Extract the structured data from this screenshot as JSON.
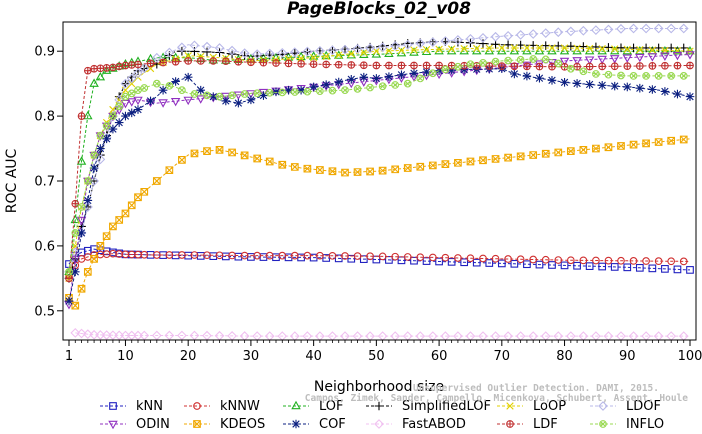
{
  "chart_data": {
    "type": "line",
    "title": "PageBlocks_02_v08",
    "xlabel": "Neighborhood size",
    "ylabel": "ROC AUC",
    "xlim": [
      1,
      100
    ],
    "ylim": [
      0.455,
      0.945
    ],
    "xticks": [
      1,
      10,
      20,
      30,
      40,
      50,
      60,
      70,
      80,
      90,
      100
    ],
    "yticks": [
      0.5,
      0.6,
      0.7,
      0.8,
      0.9
    ],
    "grid": false,
    "legend_position": "bottom",
    "watermark": [
      "Unsupervised Outlier Detection. DAMI, 2015.",
      "Campos, Zimek, Sander, Campello, Micenkova, Schubert, Assent, Houle"
    ],
    "series": [
      {
        "name": "kNN",
        "color": "#2020c0",
        "marker": "square",
        "line": "dash",
        "points": [
          [
            1,
            0.572
          ],
          [
            2,
            0.585
          ],
          [
            3,
            0.59
          ],
          [
            5,
            0.595
          ],
          [
            8,
            0.59
          ],
          [
            10,
            0.587
          ],
          [
            15,
            0.586
          ],
          [
            20,
            0.585
          ],
          [
            30,
            0.583
          ],
          [
            40,
            0.582
          ],
          [
            50,
            0.579
          ],
          [
            60,
            0.576
          ],
          [
            70,
            0.573
          ],
          [
            80,
            0.57
          ],
          [
            90,
            0.567
          ],
          [
            100,
            0.563
          ]
        ]
      },
      {
        "name": "kNNW",
        "color": "#d03030",
        "marker": "circle",
        "line": "dash",
        "points": [
          [
            1,
            0.555
          ],
          [
            2,
            0.57
          ],
          [
            3,
            0.58
          ],
          [
            5,
            0.586
          ],
          [
            8,
            0.588
          ],
          [
            10,
            0.587
          ],
          [
            15,
            0.586
          ],
          [
            20,
            0.586
          ],
          [
            30,
            0.585
          ],
          [
            40,
            0.585
          ],
          [
            50,
            0.584
          ],
          [
            60,
            0.582
          ],
          [
            70,
            0.58
          ],
          [
            80,
            0.578
          ],
          [
            90,
            0.577
          ],
          [
            100,
            0.576
          ]
        ]
      },
      {
        "name": "LOF",
        "color": "#20b020",
        "marker": "triangle-up",
        "line": "dash",
        "points": [
          [
            1,
            0.56
          ],
          [
            2,
            0.64
          ],
          [
            3,
            0.73
          ],
          [
            4,
            0.8
          ],
          [
            5,
            0.85
          ],
          [
            7,
            0.87
          ],
          [
            10,
            0.88
          ],
          [
            15,
            0.89
          ],
          [
            20,
            0.89
          ],
          [
            25,
            0.885
          ],
          [
            30,
            0.888
          ],
          [
            40,
            0.892
          ],
          [
            50,
            0.895
          ],
          [
            60,
            0.9
          ],
          [
            70,
            0.9
          ],
          [
            80,
            0.9
          ],
          [
            90,
            0.9
          ],
          [
            100,
            0.9
          ]
        ]
      },
      {
        "name": "SimplifiedLOF",
        "color": "#000000",
        "marker": "plus",
        "line": "dash",
        "points": [
          [
            1,
            0.55
          ],
          [
            2,
            0.58
          ],
          [
            3,
            0.63
          ],
          [
            4,
            0.66
          ],
          [
            5,
            0.7
          ],
          [
            6,
            0.74
          ],
          [
            7,
            0.77
          ],
          [
            8,
            0.8
          ],
          [
            9,
            0.83
          ],
          [
            10,
            0.85
          ],
          [
            12,
            0.87
          ],
          [
            15,
            0.88
          ],
          [
            18,
            0.9
          ],
          [
            20,
            0.9
          ],
          [
            25,
            0.898
          ],
          [
            30,
            0.892
          ],
          [
            35,
            0.895
          ],
          [
            40,
            0.9
          ],
          [
            45,
            0.903
          ],
          [
            50,
            0.907
          ],
          [
            55,
            0.912
          ],
          [
            60,
            0.915
          ],
          [
            65,
            0.913
          ],
          [
            70,
            0.91
          ],
          [
            80,
            0.908
          ],
          [
            90,
            0.905
          ],
          [
            100,
            0.905
          ]
        ]
      },
      {
        "name": "LoOP",
        "color": "#e0d000",
        "marker": "cross",
        "line": "dash",
        "points": [
          [
            1,
            0.55
          ],
          [
            2,
            0.6
          ],
          [
            3,
            0.66
          ],
          [
            4,
            0.7
          ],
          [
            5,
            0.74
          ],
          [
            6,
            0.77
          ],
          [
            8,
            0.81
          ],
          [
            10,
            0.84
          ],
          [
            12,
            0.86
          ],
          [
            15,
            0.88
          ],
          [
            20,
            0.893
          ],
          [
            25,
            0.89
          ],
          [
            30,
            0.885
          ],
          [
            40,
            0.89
          ],
          [
            50,
            0.9
          ],
          [
            60,
            0.903
          ],
          [
            70,
            0.905
          ],
          [
            80,
            0.905
          ],
          [
            90,
            0.903
          ],
          [
            100,
            0.9
          ]
        ]
      },
      {
        "name": "LDOF",
        "color": "#b8b8e8",
        "marker": "diamond",
        "line": "dash",
        "points": [
          [
            1,
            0.56
          ],
          [
            3,
            0.62
          ],
          [
            5,
            0.7
          ],
          [
            8,
            0.8
          ],
          [
            10,
            0.85
          ],
          [
            15,
            0.89
          ],
          [
            20,
            0.91
          ],
          [
            25,
            0.905
          ],
          [
            30,
            0.895
          ],
          [
            40,
            0.9
          ],
          [
            50,
            0.905
          ],
          [
            60,
            0.915
          ],
          [
            70,
            0.923
          ],
          [
            80,
            0.93
          ],
          [
            90,
            0.935
          ],
          [
            100,
            0.935
          ]
        ]
      },
      {
        "name": "ODIN",
        "color": "#9030c0",
        "marker": "triangle-down",
        "line": "dash",
        "points": [
          [
            1,
            0.51
          ],
          [
            2,
            0.58
          ],
          [
            3,
            0.64
          ],
          [
            4,
            0.7
          ],
          [
            5,
            0.74
          ],
          [
            6,
            0.77
          ],
          [
            8,
            0.8
          ],
          [
            10,
            0.82
          ],
          [
            12,
            0.825
          ],
          [
            15,
            0.82
          ],
          [
            20,
            0.825
          ],
          [
            25,
            0.83
          ],
          [
            30,
            0.835
          ],
          [
            40,
            0.845
          ],
          [
            50,
            0.855
          ],
          [
            60,
            0.865
          ],
          [
            70,
            0.875
          ],
          [
            80,
            0.885
          ],
          [
            90,
            0.89
          ],
          [
            100,
            0.895
          ]
        ]
      },
      {
        "name": "KDEOS",
        "color": "#f0a800",
        "marker": "square-x",
        "line": "dash",
        "points": [
          [
            1,
            0.52
          ],
          [
            2,
            0.508
          ],
          [
            4,
            0.56
          ],
          [
            6,
            0.6
          ],
          [
            8,
            0.63
          ],
          [
            10,
            0.65
          ],
          [
            12,
            0.675
          ],
          [
            15,
            0.7
          ],
          [
            18,
            0.725
          ],
          [
            20,
            0.74
          ],
          [
            22,
            0.745
          ],
          [
            25,
            0.748
          ],
          [
            28,
            0.742
          ],
          [
            30,
            0.737
          ],
          [
            33,
            0.73
          ],
          [
            35,
            0.725
          ],
          [
            38,
            0.72
          ],
          [
            40,
            0.718
          ],
          [
            45,
            0.713
          ],
          [
            50,
            0.715
          ],
          [
            55,
            0.72
          ],
          [
            60,
            0.725
          ],
          [
            65,
            0.73
          ],
          [
            70,
            0.735
          ],
          [
            75,
            0.74
          ],
          [
            80,
            0.745
          ],
          [
            85,
            0.75
          ],
          [
            90,
            0.755
          ],
          [
            95,
            0.76
          ],
          [
            100,
            0.765
          ]
        ]
      },
      {
        "name": "COF",
        "color": "#0b1f80",
        "marker": "asterisk",
        "line": "dash",
        "points": [
          [
            1,
            0.515
          ],
          [
            2,
            0.56
          ],
          [
            3,
            0.62
          ],
          [
            4,
            0.67
          ],
          [
            5,
            0.72
          ],
          [
            6,
            0.75
          ],
          [
            8,
            0.78
          ],
          [
            10,
            0.8
          ],
          [
            12,
            0.81
          ],
          [
            15,
            0.83
          ],
          [
            17,
            0.85
          ],
          [
            20,
            0.86
          ],
          [
            22,
            0.84
          ],
          [
            25,
            0.825
          ],
          [
            28,
            0.82
          ],
          [
            30,
            0.825
          ],
          [
            33,
            0.835
          ],
          [
            35,
            0.84
          ],
          [
            38,
            0.84
          ],
          [
            40,
            0.845
          ],
          [
            43,
            0.85
          ],
          [
            45,
            0.855
          ],
          [
            48,
            0.86
          ],
          [
            50,
            0.858
          ],
          [
            55,
            0.865
          ],
          [
            60,
            0.87
          ],
          [
            65,
            0.872
          ],
          [
            70,
            0.873
          ],
          [
            72,
            0.865
          ],
          [
            75,
            0.86
          ],
          [
            80,
            0.852
          ],
          [
            85,
            0.848
          ],
          [
            90,
            0.845
          ],
          [
            95,
            0.84
          ],
          [
            100,
            0.83
          ]
        ]
      },
      {
        "name": "FastABOD",
        "color": "#f0c0f0",
        "marker": "diamond",
        "line": "dash",
        "points": [
          [
            2,
            0.466
          ],
          [
            5,
            0.463
          ],
          [
            10,
            0.462
          ],
          [
            20,
            0.462
          ],
          [
            30,
            0.461
          ],
          [
            40,
            0.461
          ],
          [
            50,
            0.461
          ],
          [
            60,
            0.461
          ],
          [
            70,
            0.461
          ],
          [
            80,
            0.461
          ],
          [
            90,
            0.461
          ],
          [
            100,
            0.461
          ]
        ]
      },
      {
        "name": "LDF",
        "color": "#c03030",
        "marker": "circle-plus",
        "line": "dash",
        "points": [
          [
            1,
            0.55
          ],
          [
            2,
            0.665
          ],
          [
            3,
            0.8
          ],
          [
            4,
            0.87
          ],
          [
            5,
            0.873
          ],
          [
            8,
            0.875
          ],
          [
            10,
            0.878
          ],
          [
            15,
            0.882
          ],
          [
            20,
            0.885
          ],
          [
            25,
            0.885
          ],
          [
            30,
            0.883
          ],
          [
            40,
            0.88
          ],
          [
            50,
            0.878
          ],
          [
            60,
            0.878
          ],
          [
            70,
            0.877
          ],
          [
            80,
            0.876
          ],
          [
            90,
            0.877
          ],
          [
            100,
            0.878
          ]
        ]
      },
      {
        "name": "INFLO",
        "color": "#98d850",
        "marker": "circle-x",
        "line": "dash",
        "points": [
          [
            1,
            0.56
          ],
          [
            2,
            0.62
          ],
          [
            3,
            0.66
          ],
          [
            4,
            0.7
          ],
          [
            5,
            0.74
          ],
          [
            6,
            0.77
          ],
          [
            8,
            0.8
          ],
          [
            10,
            0.83
          ],
          [
            12,
            0.84
          ],
          [
            15,
            0.85
          ],
          [
            18,
            0.845
          ],
          [
            20,
            0.835
          ],
          [
            25,
            0.83
          ],
          [
            30,
            0.835
          ],
          [
            40,
            0.838
          ],
          [
            45,
            0.84
          ],
          [
            50,
            0.845
          ],
          [
            55,
            0.85
          ],
          [
            60,
            0.87
          ],
          [
            65,
            0.88
          ],
          [
            70,
            0.885
          ],
          [
            75,
            0.888
          ],
          [
            78,
            0.887
          ],
          [
            80,
            0.875
          ],
          [
            85,
            0.865
          ],
          [
            90,
            0.862
          ],
          [
            95,
            0.862
          ],
          [
            100,
            0.862
          ]
        ]
      }
    ]
  }
}
